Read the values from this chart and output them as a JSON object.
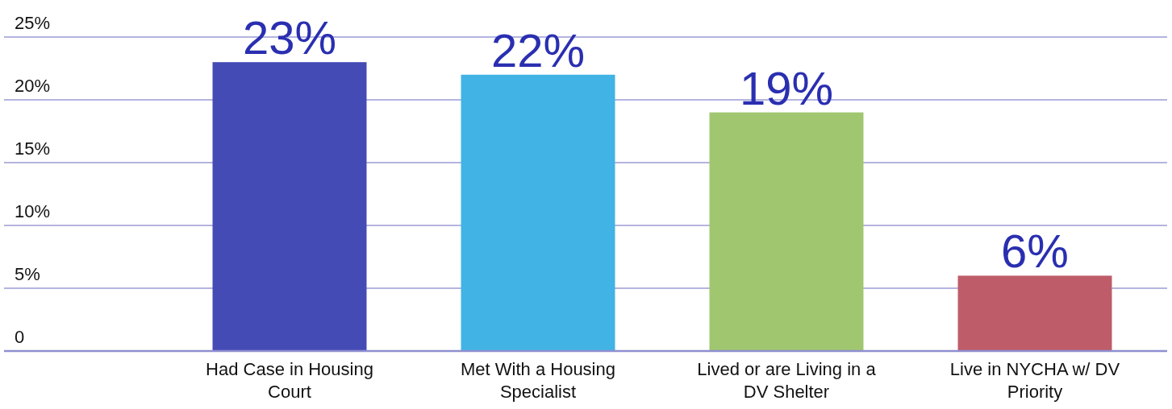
{
  "chart_data": {
    "type": "bar",
    "categories": [
      "Had Case in Housing Court",
      "Met With a Housing Specialist",
      "Lived or are Living in a DV Shelter",
      "Live in NYCHA w/ DV Priority"
    ],
    "values": [
      23,
      22,
      19,
      6
    ],
    "colors": [
      "#454bb5",
      "#41b3e5",
      "#a0c76f",
      "#be5d69"
    ],
    "ylim": [
      0,
      25
    ],
    "yticks": [
      {
        "value": 0,
        "label": "0"
      },
      {
        "value": 5,
        "label": "5%"
      },
      {
        "value": 10,
        "label": "10%"
      },
      {
        "value": 15,
        "label": "15%"
      },
      {
        "value": 20,
        "label": "20%"
      },
      {
        "value": 25,
        "label": "25%"
      }
    ],
    "value_labels": [
      "23%",
      "22%",
      "19%",
      "6%"
    ],
    "grid": "y"
  }
}
